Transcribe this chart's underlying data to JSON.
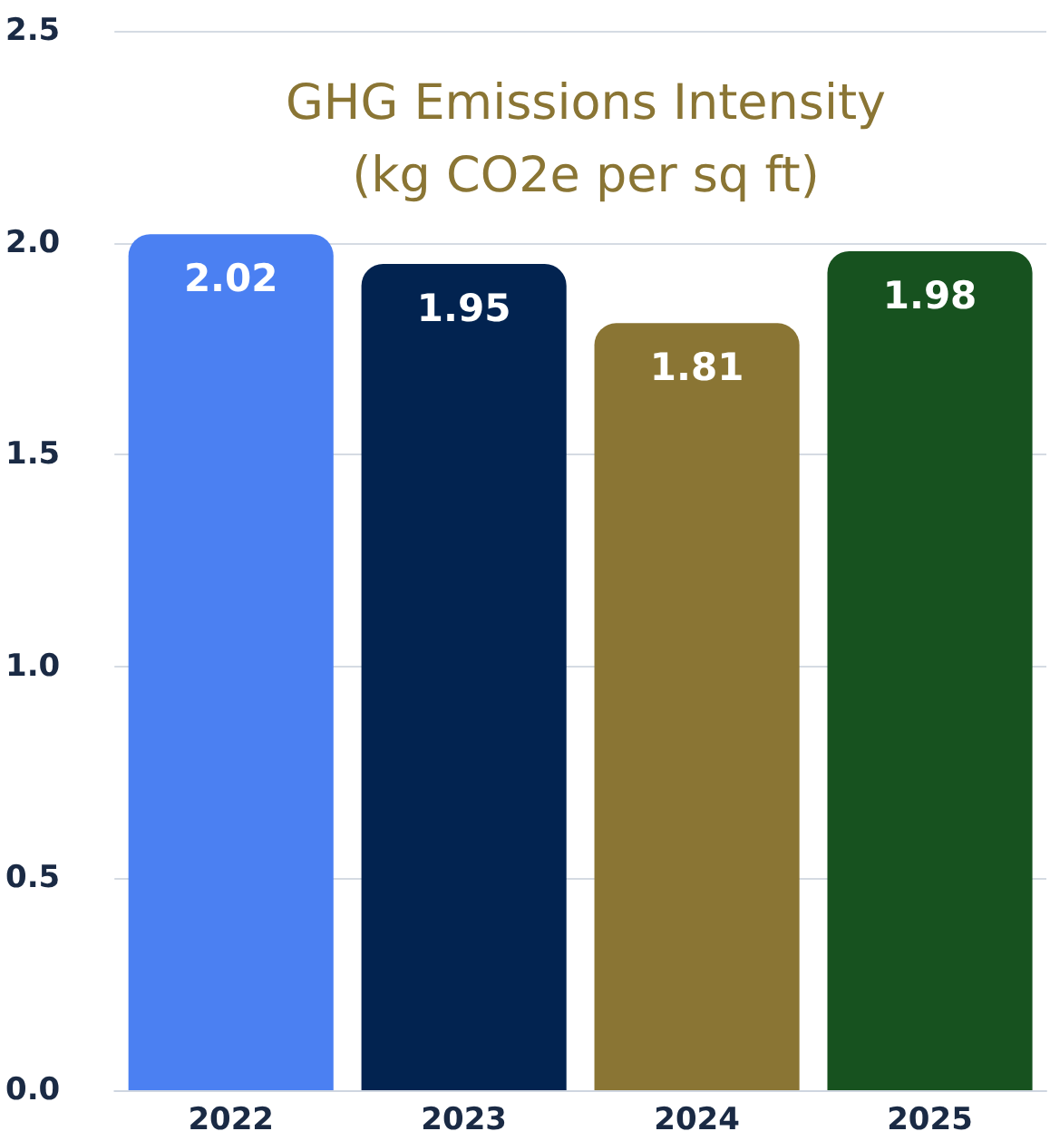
{
  "chart_data": {
    "type": "bar",
    "title": "GHG Emissions Intensity\n(kg CO2e per sq ft)",
    "categories": [
      "2022",
      "2023",
      "2024",
      "2025"
    ],
    "values": [
      2.02,
      1.95,
      1.81,
      1.98
    ],
    "colors": [
      "#4b80f2",
      "#022350",
      "#8a7534",
      "#17521f"
    ],
    "ylim": [
      0,
      2.5
    ],
    "yticks": [
      {
        "value": 0,
        "label": "0.0"
      },
      0.5,
      {
        "value": 1,
        "label": "1.0"
      },
      1.5,
      {
        "value": 2,
        "label": "2.0"
      },
      2.5
    ],
    "grid": "y",
    "data_labels": true
  }
}
